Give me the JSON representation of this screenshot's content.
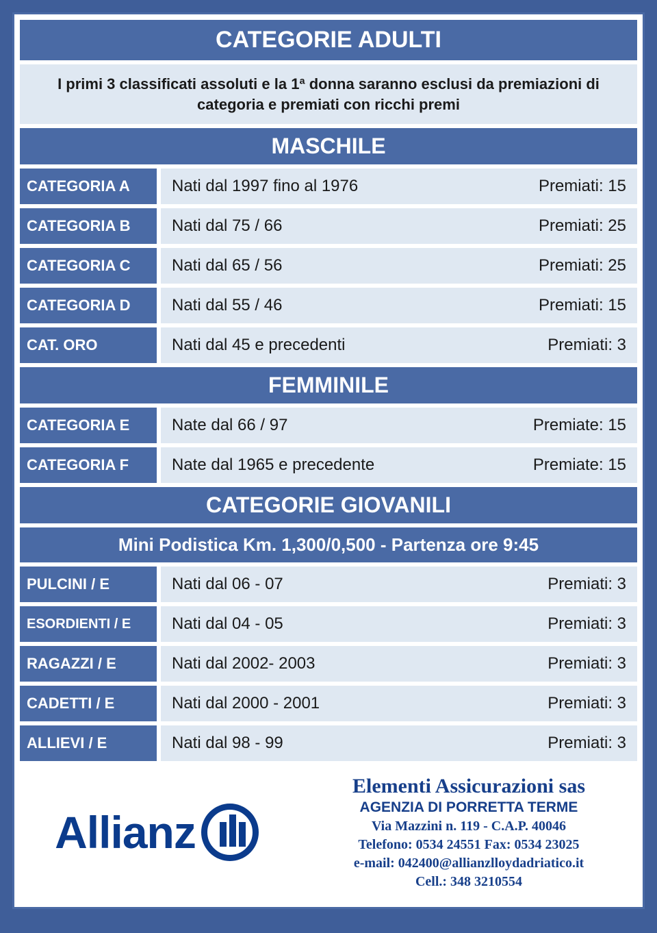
{
  "colors": {
    "page_bg": "#3f5e99",
    "panel_bg": "#ffffff",
    "bar_bg": "#4a6aa5",
    "bar_fg": "#ffffff",
    "strip_bg": "#dfe8f2",
    "strip_fg": "#1a1a1a",
    "brand": "#0b3b8c"
  },
  "title": "CATEGORIE ADULTI",
  "subtitle": "I primi 3 classificati assoluti e la 1ª donna saranno esclusi da premiazioni di categoria e premiati con ricchi premi",
  "maschile": {
    "header": "MASCHILE",
    "rows": [
      {
        "category": "CATEGORIA A",
        "range": "Nati dal 1997 fino al 1976",
        "prize": "Premiati: 15"
      },
      {
        "category": "CATEGORIA B",
        "range": "Nati dal  75 / 66",
        "prize": "Premiati: 25"
      },
      {
        "category": "CATEGORIA C",
        "range": "Nati dal 65 / 56",
        "prize": "Premiati: 25"
      },
      {
        "category": "CATEGORIA D",
        "range": "Nati  dal 55 / 46",
        "prize": "Premiati: 15"
      },
      {
        "category": "CAT. ORO",
        "range": "Nati dal  45 e precedenti",
        "prize": "Premiati: 3"
      }
    ]
  },
  "femminile": {
    "header": "FEMMINILE",
    "rows": [
      {
        "category": "CATEGORIA E",
        "range": "Nate dal  66 / 97",
        "prize": "Premiate: 15"
      },
      {
        "category": "CATEGORIA F",
        "range": "Nate dal  1965 e precedente",
        "prize": "Premiate: 15"
      }
    ]
  },
  "giovanili": {
    "header": "CATEGORIE GIOVANILI",
    "subheader": "Mini Podistica Km. 1,300/0,500 - Partenza ore 9:45",
    "rows": [
      {
        "category": "PULCINI / E",
        "range": "Nati dal 06 - 07",
        "prize": "Premiati: 3"
      },
      {
        "category": "ESORDIENTI / E",
        "range": "Nati dal  04 - 05",
        "prize": "Premiati: 3",
        "small": true
      },
      {
        "category": "RAGAZZI / E",
        "range": "Nati dal  2002- 2003",
        "prize": "Premiati: 3"
      },
      {
        "category": "CADETTI / E",
        "range": "Nati dal  2000 - 2001",
        "prize": "Premiati: 3"
      },
      {
        "category": "ALLIEVI / E",
        "range": "Nati dal  98 - 99",
        "prize": "Premiati: 3"
      }
    ]
  },
  "footer": {
    "brand": "Allianz",
    "company": "Elementi Assicurazioni sas",
    "office": "AGENZIA DI PORRETTA TERME",
    "address": "Via Mazzini n. 119 - C.A.P. 40046",
    "phone": "Telefono: 0534 24551 Fax: 0534 23025",
    "email": "e-mail: 042400@allianzlloydadriatico.it",
    "cell": "Cell.: 348 3210554"
  }
}
